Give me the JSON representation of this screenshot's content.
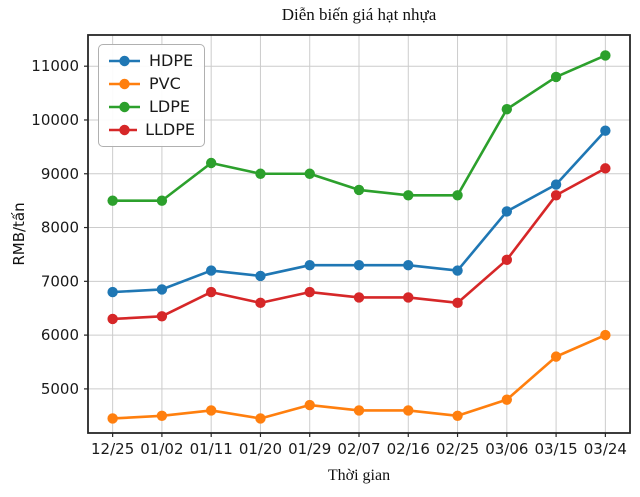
{
  "chart_data": {
    "type": "line",
    "title": "Diễn biến giá hạt nhựa",
    "xlabel": "Thời gian",
    "ylabel": "RMB/tấn",
    "categories": [
      "12/25",
      "01/02",
      "01/11",
      "01/20",
      "01/29",
      "02/07",
      "02/16",
      "02/25",
      "03/06",
      "03/15",
      "03/24"
    ],
    "series": [
      {
        "name": "HDPE",
        "color": "#1f77b4",
        "values": [
          6800,
          6850,
          7200,
          7100,
          7300,
          7300,
          7300,
          7200,
          8300,
          8800,
          9800
        ]
      },
      {
        "name": "PVC",
        "color": "#ff7f0e",
        "values": [
          4450,
          4500,
          4600,
          4450,
          4700,
          4600,
          4600,
          4500,
          4800,
          5600,
          6000
        ]
      },
      {
        "name": "LDPE",
        "color": "#2ca02c",
        "values": [
          8500,
          8500,
          9200,
          9000,
          9000,
          8700,
          8600,
          8600,
          10200,
          10800,
          11200
        ]
      },
      {
        "name": "LLDPE",
        "color": "#d62728",
        "values": [
          6300,
          6350,
          6800,
          6600,
          6800,
          6700,
          6700,
          6600,
          7400,
          8600,
          9100
        ]
      }
    ],
    "yticks": [
      5000,
      6000,
      7000,
      8000,
      9000,
      10000,
      11000
    ],
    "ylim": [
      4180,
      11580
    ],
    "grid": true,
    "legend_position": "upper-left",
    "marker": "circle"
  },
  "style": {
    "grid_color": "#cccccc",
    "spine_color": "#262626",
    "tick_color": "#262626",
    "text_color": "#1a1a1a"
  }
}
